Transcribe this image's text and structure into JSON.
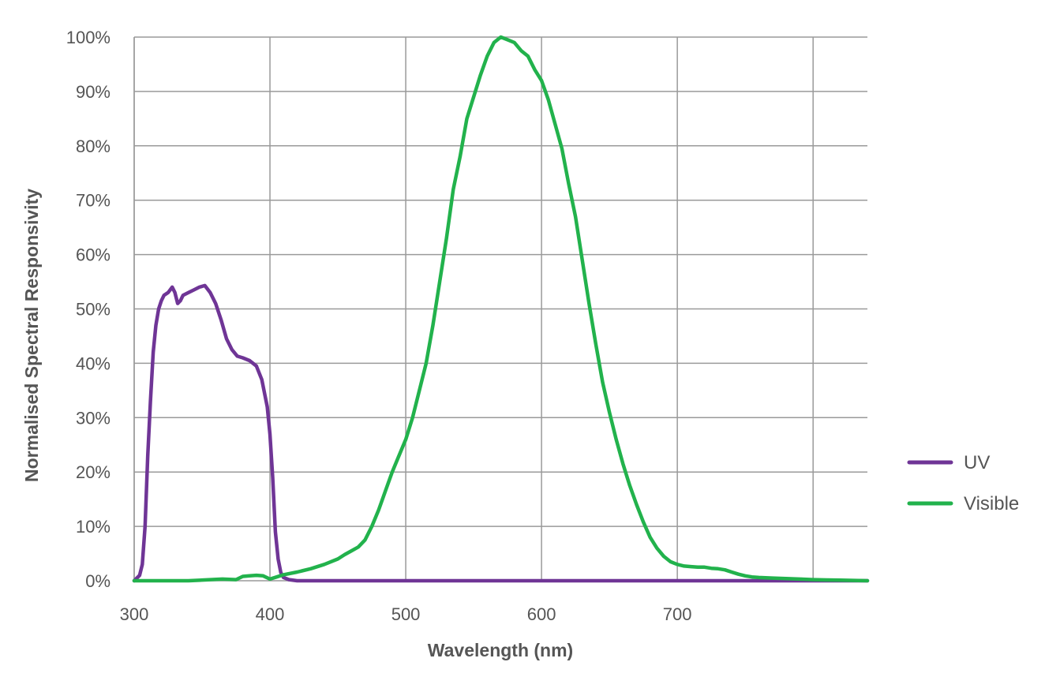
{
  "chart_data": {
    "type": "line",
    "xlabel": "Wavelength (nm)",
    "ylabel": "Normalised Spectral Responsivity",
    "xlim": [
      300,
      840
    ],
    "ylim": [
      0,
      100
    ],
    "x_ticks": [
      300,
      400,
      500,
      600,
      700
    ],
    "x_tick_labels": [
      "300",
      "400",
      "500",
      "600",
      "700"
    ],
    "y_ticks": [
      0,
      10,
      20,
      30,
      40,
      50,
      60,
      70,
      80,
      90,
      100
    ],
    "y_tick_labels": [
      "0%",
      "10%",
      "20%",
      "30%",
      "40%",
      "50%",
      "60%",
      "70%",
      "80%",
      "90%",
      "100%"
    ],
    "x_gridlines": [
      300,
      400,
      500,
      600,
      700,
      800
    ],
    "grid": true,
    "legend_position": "right",
    "series": [
      {
        "name": "UV",
        "color": "#6f3596",
        "points": [
          [
            300,
            0
          ],
          [
            304,
            1
          ],
          [
            306,
            3
          ],
          [
            308,
            10
          ],
          [
            310,
            23
          ],
          [
            312,
            33
          ],
          [
            314,
            42
          ],
          [
            316,
            47
          ],
          [
            318,
            50
          ],
          [
            320,
            51.5
          ],
          [
            322,
            52.5
          ],
          [
            325,
            53
          ],
          [
            328,
            54
          ],
          [
            330,
            53
          ],
          [
            332,
            51
          ],
          [
            334,
            51.5
          ],
          [
            336,
            52.5
          ],
          [
            340,
            53
          ],
          [
            344,
            53.5
          ],
          [
            348,
            54
          ],
          [
            352,
            54.3
          ],
          [
            356,
            53
          ],
          [
            360,
            51
          ],
          [
            364,
            48
          ],
          [
            368,
            44.5
          ],
          [
            372,
            42.5
          ],
          [
            376,
            41.3
          ],
          [
            380,
            41
          ],
          [
            385,
            40.5
          ],
          [
            390,
            39.5
          ],
          [
            394,
            37
          ],
          [
            398,
            32
          ],
          [
            400,
            27
          ],
          [
            402,
            19
          ],
          [
            404,
            9
          ],
          [
            406,
            4
          ],
          [
            408,
            1.5
          ],
          [
            410,
            0.6
          ],
          [
            414,
            0.2
          ],
          [
            420,
            0
          ],
          [
            500,
            0
          ],
          [
            840,
            0
          ]
        ]
      },
      {
        "name": "Visible",
        "color": "#22b24c",
        "points": [
          [
            300,
            0
          ],
          [
            340,
            0
          ],
          [
            365,
            0.3
          ],
          [
            375,
            0.2
          ],
          [
            380,
            0.8
          ],
          [
            385,
            0.9
          ],
          [
            390,
            1
          ],
          [
            395,
            0.9
          ],
          [
            400,
            0.3
          ],
          [
            405,
            0.7
          ],
          [
            410,
            1.1
          ],
          [
            420,
            1.6
          ],
          [
            430,
            2.2
          ],
          [
            440,
            3
          ],
          [
            450,
            4
          ],
          [
            455,
            4.8
          ],
          [
            460,
            5.5
          ],
          [
            465,
            6.2
          ],
          [
            470,
            7.5
          ],
          [
            475,
            10
          ],
          [
            480,
            13
          ],
          [
            485,
            16.5
          ],
          [
            490,
            20
          ],
          [
            495,
            23
          ],
          [
            500,
            26
          ],
          [
            505,
            30
          ],
          [
            510,
            35
          ],
          [
            515,
            40
          ],
          [
            520,
            47
          ],
          [
            525,
            55
          ],
          [
            530,
            63
          ],
          [
            535,
            72
          ],
          [
            540,
            78
          ],
          [
            545,
            85
          ],
          [
            550,
            89
          ],
          [
            555,
            93
          ],
          [
            560,
            96.5
          ],
          [
            565,
            99
          ],
          [
            570,
            100
          ],
          [
            575,
            99.5
          ],
          [
            580,
            99
          ],
          [
            585,
            97.5
          ],
          [
            590,
            96.5
          ],
          [
            595,
            94
          ],
          [
            600,
            92
          ],
          [
            605,
            88.5
          ],
          [
            610,
            84
          ],
          [
            615,
            79.5
          ],
          [
            620,
            73
          ],
          [
            625,
            67
          ],
          [
            630,
            59
          ],
          [
            635,
            51
          ],
          [
            640,
            43.5
          ],
          [
            645,
            36.5
          ],
          [
            650,
            31
          ],
          [
            655,
            26
          ],
          [
            660,
            21.5
          ],
          [
            665,
            17.5
          ],
          [
            670,
            14
          ],
          [
            675,
            10.8
          ],
          [
            680,
            8
          ],
          [
            685,
            6
          ],
          [
            690,
            4.5
          ],
          [
            695,
            3.5
          ],
          [
            700,
            3
          ],
          [
            705,
            2.7
          ],
          [
            710,
            2.6
          ],
          [
            715,
            2.5
          ],
          [
            720,
            2.5
          ],
          [
            725,
            2.3
          ],
          [
            730,
            2.2
          ],
          [
            735,
            2
          ],
          [
            740,
            1.6
          ],
          [
            745,
            1.2
          ],
          [
            750,
            0.9
          ],
          [
            755,
            0.7
          ],
          [
            760,
            0.6
          ],
          [
            770,
            0.5
          ],
          [
            780,
            0.4
          ],
          [
            790,
            0.3
          ],
          [
            800,
            0.2
          ],
          [
            810,
            0.15
          ],
          [
            820,
            0.1
          ],
          [
            840,
            0
          ]
        ]
      }
    ]
  }
}
